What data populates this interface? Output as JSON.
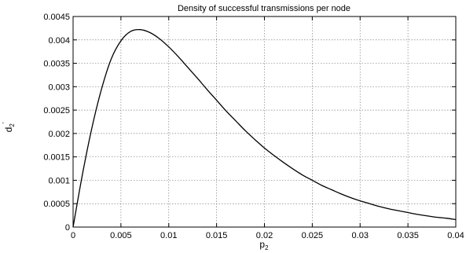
{
  "chart_data": {
    "type": "line",
    "title": "Density of successful transmissions per node",
    "xlabel": {
      "main": "p",
      "sub": "2"
    },
    "ylabel": {
      "main": "d",
      "sub": "2",
      "sup": "'"
    },
    "xlim": [
      0,
      0.04
    ],
    "ylim": [
      0,
      0.0045
    ],
    "grid": true,
    "xticks": [
      {
        "value": 0,
        "label": "0"
      },
      {
        "value": 0.005,
        "label": "0.005"
      },
      {
        "value": 0.01,
        "label": "0.01"
      },
      {
        "value": 0.015,
        "label": "0.015"
      },
      {
        "value": 0.02,
        "label": "0.02"
      },
      {
        "value": 0.025,
        "label": "0.025"
      },
      {
        "value": 0.03,
        "label": "0.03"
      },
      {
        "value": 0.035,
        "label": "0.035"
      },
      {
        "value": 0.04,
        "label": "0.04"
      }
    ],
    "yticks": [
      {
        "value": 0,
        "label": "0"
      },
      {
        "value": 0.0005,
        "label": "0.0005"
      },
      {
        "value": 0.001,
        "label": "0.001"
      },
      {
        "value": 0.0015,
        "label": "0.0015"
      },
      {
        "value": 0.002,
        "label": "0.002"
      },
      {
        "value": 0.0025,
        "label": "0.0025"
      },
      {
        "value": 0.003,
        "label": "0.003"
      },
      {
        "value": 0.0035,
        "label": "0.0035"
      },
      {
        "value": 0.004,
        "label": "0.004"
      },
      {
        "value": 0.0045,
        "label": "0.0045"
      }
    ],
    "series": [
      {
        "x": [
          0,
          0.001,
          0.002,
          0.003,
          0.004,
          0.005,
          0.006,
          0.007,
          0.008,
          0.009,
          0.01,
          0.011,
          0.012,
          0.013,
          0.014,
          0.015,
          0.016,
          0.017,
          0.018,
          0.019,
          0.02,
          0.021,
          0.022,
          0.023,
          0.024,
          0.025,
          0.026,
          0.027,
          0.028,
          0.029,
          0.03,
          0.031,
          0.032,
          0.033,
          0.034,
          0.035,
          0.036,
          0.037,
          0.038,
          0.039,
          0.04
        ],
        "y": [
          0,
          0.00115,
          0.00215,
          0.00297,
          0.0036,
          0.00398,
          0.00418,
          0.00422,
          0.00416,
          0.00403,
          0.00385,
          0.00364,
          0.00341,
          0.00318,
          0.00294,
          0.00271,
          0.00248,
          0.00227,
          0.00206,
          0.00187,
          0.00169,
          0.00153,
          0.00138,
          0.00124,
          0.00111,
          0.001,
          0.00089,
          0.0008,
          0.00071,
          0.00063,
          0.00056,
          0.0005,
          0.00044,
          0.00039,
          0.00035,
          0.00031,
          0.00027,
          0.00024,
          0.00021,
          0.00019,
          0.00016
        ]
      }
    ]
  }
}
